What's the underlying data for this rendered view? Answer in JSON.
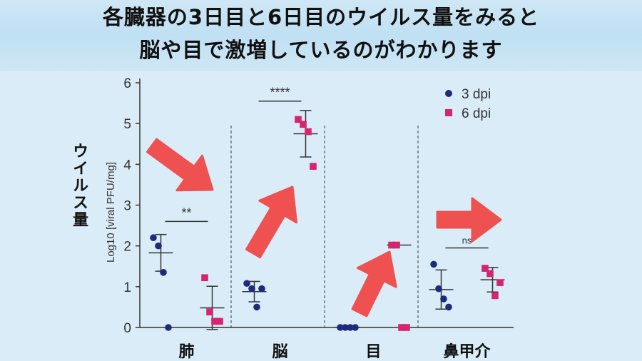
{
  "banner": {
    "line1": "各臓器の3日目と6日目のウイルス量をみると",
    "line2": "脳や目で激増しているのがわかります"
  },
  "chart_data": {
    "type": "scatter",
    "categories": [
      "肺",
      "脳",
      "目",
      "鼻甲介"
    ],
    "ylabel": "Log10 [viral PFU/mg]",
    "ylabel_overlay": "ウイルス量",
    "ylim": [
      0,
      6
    ],
    "yticks": [
      0,
      1,
      2,
      3,
      4,
      5,
      6
    ],
    "series": [
      {
        "name": "3 dpi",
        "color": "#1f2a7a",
        "marker": "circle",
        "points": [
          [
            2.2,
            2.0,
            1.35,
            0.0
          ],
          [
            1.08,
            0.95,
            0.5,
            0.95
          ],
          [
            0.0,
            0.0,
            0.0,
            0.0
          ],
          [
            1.55,
            0.95,
            0.7,
            0.5
          ]
        ],
        "mean": [
          1.83,
          0.88,
          0.0,
          0.93
        ],
        "err": [
          0.45,
          0.25,
          0.0,
          0.48
        ]
      },
      {
        "name": "6 dpi",
        "color": "#d6246e",
        "marker": "square",
        "points": [
          [
            1.22,
            0.38,
            0.15,
            0.15
          ],
          [
            5.1,
            4.98,
            4.8,
            3.95
          ],
          [
            2.02,
            2.02,
            0.0,
            0.0
          ],
          [
            1.45,
            1.32,
            0.78,
            1.1
          ]
        ],
        "mean": [
          0.48,
          4.75,
          2.02,
          1.17
        ],
        "err": [
          0.53,
          0.57,
          0.0,
          0.3
        ]
      }
    ],
    "significance": [
      "**",
      "****",
      "",
      "ns"
    ],
    "legend_placement": "top-right",
    "annotations": "red arrows"
  }
}
